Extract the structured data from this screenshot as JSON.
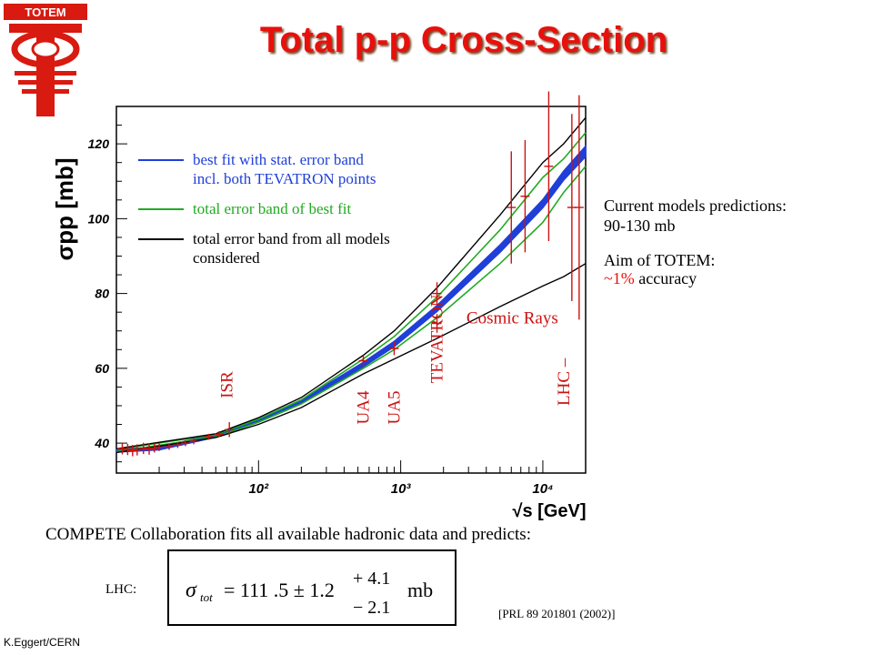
{
  "logo": {
    "text": "TOTEM"
  },
  "title": "Total p-p Cross-Section",
  "chart_data": {
    "type": "line",
    "ylabel": "σpp [mb]",
    "xlabel": "√s [GeV]",
    "xscale": "log",
    "xlim": [
      10,
      20000
    ],
    "ylim": [
      32,
      130
    ],
    "yticks": [
      40,
      60,
      80,
      100,
      120
    ],
    "xticks": [
      100,
      1000,
      10000
    ],
    "xtick_labels": [
      "10²",
      "10³",
      "10⁴"
    ],
    "legend": [
      {
        "color": "#1f3fd8",
        "lines": [
          "best fit with stat. error band",
          "incl. both TEVATRON points"
        ]
      },
      {
        "color": "#22aa22",
        "lines": [
          "total error band of best fit"
        ]
      },
      {
        "color": "#000000",
        "lines": [
          "total error band from all models",
          "considered"
        ]
      }
    ],
    "series": [
      {
        "role": "best-fit-band",
        "color": "#1f3fd8",
        "x": [
          10,
          20,
          50,
          100,
          200,
          546,
          900,
          1800,
          5000,
          10000,
          14000,
          20000
        ],
        "y": [
          38.0,
          38.6,
          42.0,
          46.0,
          51.0,
          61.0,
          66.5,
          76.0,
          92.0,
          104.0,
          111.5,
          118.0
        ],
        "halfwidth": [
          0.4,
          0.4,
          0.4,
          0.4,
          0.5,
          0.6,
          0.7,
          0.8,
          1.0,
          1.1,
          1.2,
          1.4
        ]
      },
      {
        "role": "total-band-upper",
        "color": "#22aa22",
        "x": [
          10,
          50,
          100,
          200,
          546,
          900,
          1800,
          5000,
          10000,
          14000,
          20000
        ],
        "y": [
          38.3,
          42.3,
          46.4,
          51.6,
          62.5,
          68.5,
          79.0,
          97.0,
          111.0,
          116.0,
          123.0
        ]
      },
      {
        "role": "total-band-lower",
        "color": "#22aa22",
        "x": [
          10,
          50,
          100,
          200,
          546,
          900,
          1800,
          5000,
          10000,
          14000,
          20000
        ],
        "y": [
          37.7,
          41.7,
          45.6,
          50.5,
          60.0,
          65.0,
          73.5,
          88.0,
          99.0,
          107.0,
          114.0
        ]
      },
      {
        "role": "all-models-upper",
        "color": "#000000",
        "x": [
          10,
          50,
          100,
          200,
          546,
          900,
          1800,
          5000,
          10000,
          14000,
          20000
        ],
        "y": [
          38.5,
          42.5,
          46.8,
          52.2,
          63.5,
          70.0,
          81.5,
          101.0,
          115.0,
          120.0,
          127.0
        ]
      },
      {
        "role": "all-models-lower",
        "color": "#000000",
        "x": [
          10,
          50,
          100,
          200,
          546,
          900,
          1800,
          5000,
          10000,
          14000,
          20000
        ],
        "y": [
          37.5,
          41.5,
          45.0,
          49.5,
          58.5,
          62.5,
          68.0,
          76.5,
          82.0,
          84.5,
          88.0
        ]
      }
    ],
    "data_points": [
      {
        "x": 11,
        "y": 38.5,
        "err": 1.5
      },
      {
        "x": 12,
        "y": 38.3,
        "err": 1.5
      },
      {
        "x": 13,
        "y": 38.0,
        "err": 1.5
      },
      {
        "x": 14,
        "y": 38.2,
        "err": 1.5
      },
      {
        "x": 15.5,
        "y": 38.6,
        "err": 1.5
      },
      {
        "x": 17,
        "y": 38.4,
        "err": 1.5
      },
      {
        "x": 18.5,
        "y": 38.7,
        "err": 1.2
      },
      {
        "x": 20,
        "y": 38.9,
        "err": 1.0
      },
      {
        "x": 23.5,
        "y": 39.0,
        "err": 0.8
      },
      {
        "x": 27,
        "y": 39.5,
        "err": 0.8
      },
      {
        "x": 30.6,
        "y": 40.0,
        "err": 0.8
      },
      {
        "x": 35,
        "y": 40.5,
        "err": 0.8
      },
      {
        "x": 44.7,
        "y": 41.7,
        "err": 0.8
      },
      {
        "x": 52.8,
        "y": 42.4,
        "err": 0.8
      },
      {
        "x": 62.3,
        "y": 43.6,
        "err": 2.0
      },
      {
        "x": 546,
        "y": 62.0,
        "err": 1.5
      },
      {
        "x": 900,
        "y": 65.3,
        "err": 1.8
      },
      {
        "x": 1800,
        "y": 80.0,
        "err": 3.0
      },
      {
        "x": 1800,
        "y": 72.0,
        "err": 2.5
      },
      {
        "x": 6000,
        "y": 103.0,
        "err": 15
      },
      {
        "x": 7500,
        "y": 106.0,
        "err": 15
      },
      {
        "x": 11000,
        "y": 114.0,
        "err": 20
      },
      {
        "x": 16000,
        "y": 103.0,
        "err": 25
      },
      {
        "x": 18000,
        "y": 103.0,
        "err": 30
      }
    ],
    "annotations": [
      {
        "text": "ISR",
        "color": "#cc1111",
        "x": 60,
        "y": 52,
        "rotate": true
      },
      {
        "text": "UA4",
        "color": "#cc1111",
        "x": 546,
        "y": 45,
        "rotate": true
      },
      {
        "text": "UA5",
        "color": "#cc1111",
        "x": 900,
        "y": 45,
        "rotate": true
      },
      {
        "text": "TEVATRON",
        "color": "#cc1111",
        "x": 1800,
        "y": 56,
        "rotate": true
      },
      {
        "text": "LHC –",
        "color": "#cc1111",
        "x": 14000,
        "y": 50,
        "rotate": true
      },
      {
        "text": "Cosmic Rays",
        "color": "#cc1111",
        "x": 2900,
        "y": 72,
        "rotate": false
      }
    ]
  },
  "side_notes": {
    "current_models": "Current models predictions:",
    "range": "90-130 mb",
    "aim": "Aim of TOTEM:",
    "accuracy_value": "~1%",
    "accuracy_text": " accuracy"
  },
  "compete_text": "COMPETE Collaboration fits all available hadronic data and predicts:",
  "lhc_label": "LHC:",
  "formula": {
    "sigma": "σ",
    "sub": "tot",
    "equals": "= 111 .5 ± 1.2",
    "plus": "+ 4.1",
    "minus": "− 2.1",
    "unit": "mb"
  },
  "reference": "[PRL 89 201801 (2002)]",
  "credit": "K.Eggert/CERN"
}
